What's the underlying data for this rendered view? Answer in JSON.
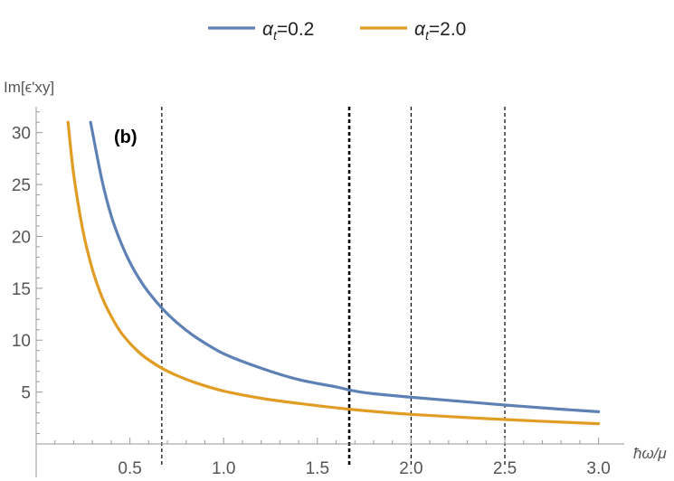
{
  "chart_data": {
    "type": "line",
    "panel_label": "(b)",
    "xlabel": "ħω/μ",
    "ylabel": "Im[ϵ'xy]",
    "xlim": [
      0,
      3.05
    ],
    "ylim": [
      0,
      32.5
    ],
    "x_ticks": [
      0.5,
      1.0,
      1.5,
      2.0,
      2.5,
      3.0
    ],
    "x_tick_labels": [
      "0.5",
      "1.0",
      "1.5",
      "2.0",
      "2.5",
      "3.0"
    ],
    "y_ticks": [
      5,
      10,
      15,
      20,
      25,
      30
    ],
    "y_tick_labels": [
      "5",
      "10",
      "15",
      "20",
      "25",
      "30"
    ],
    "grid": false,
    "legend_position": "top-center",
    "series": [
      {
        "name": "αt=0.2",
        "color": "#5E81B5",
        "x": [
          0.29,
          0.35,
          0.4,
          0.45,
          0.5,
          0.55,
          0.6,
          0.67,
          0.75,
          0.85,
          1.0,
          1.2,
          1.4,
          1.6,
          1.67,
          1.75,
          1.85,
          2.0,
          2.2,
          2.5,
          2.8,
          3.0
        ],
        "y": [
          31.0,
          25.5,
          22.0,
          19.5,
          17.5,
          15.9,
          14.6,
          13.1,
          11.7,
          10.3,
          8.7,
          7.3,
          6.2,
          5.5,
          5.2,
          4.95,
          4.75,
          4.5,
          4.2,
          3.75,
          3.35,
          3.1
        ]
      },
      {
        "name": "αt=2.0",
        "color": "#E19C24",
        "x": [
          0.17,
          0.2,
          0.25,
          0.3,
          0.35,
          0.4,
          0.45,
          0.5,
          0.55,
          0.6,
          0.67,
          0.75,
          0.85,
          1.0,
          1.2,
          1.4,
          1.67,
          2.0,
          2.5,
          3.0
        ],
        "y": [
          31.0,
          26.0,
          20.5,
          16.8,
          14.2,
          12.3,
          10.8,
          9.7,
          8.8,
          8.1,
          7.3,
          6.6,
          5.9,
          5.1,
          4.4,
          3.9,
          3.35,
          2.85,
          2.35,
          1.95
        ]
      }
    ],
    "reference_lines": [
      {
        "x": 0.67,
        "style": "dashed",
        "weight": "normal"
      },
      {
        "x": 1.67,
        "style": "dashed",
        "weight": "bold"
      },
      {
        "x": 2.0,
        "style": "dashed",
        "weight": "normal"
      },
      {
        "x": 2.5,
        "style": "dashed",
        "weight": "normal"
      }
    ]
  }
}
